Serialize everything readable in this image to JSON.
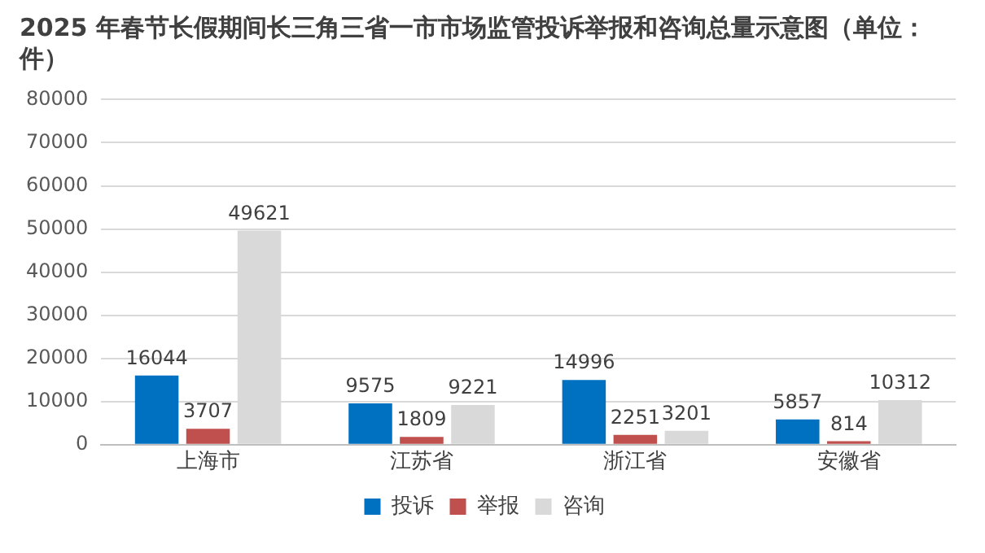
{
  "chart_data": {
    "type": "bar",
    "title": "2025 年春节长假期间长三角三省一市市场监管投诉举报和咨询总量示意图（单位：件）",
    "categories": [
      "上海市",
      "江苏省",
      "浙江省",
      "安徽省"
    ],
    "series": [
      {
        "name": "投诉",
        "color": "#0070c0",
        "values": [
          16044,
          9575,
          14996,
          5857
        ]
      },
      {
        "name": "举报",
        "color": "#c0504d",
        "values": [
          3707,
          1809,
          2251,
          814
        ]
      },
      {
        "name": "咨询",
        "color": "#d9d9d9",
        "values": [
          49621,
          9221,
          3201,
          10312
        ]
      }
    ],
    "ylim": [
      0,
      80000
    ],
    "yticks": [
      0,
      10000,
      20000,
      30000,
      40000,
      50000,
      60000,
      70000,
      80000
    ],
    "grid": "y",
    "legend": "bottom",
    "data_labels": true
  }
}
